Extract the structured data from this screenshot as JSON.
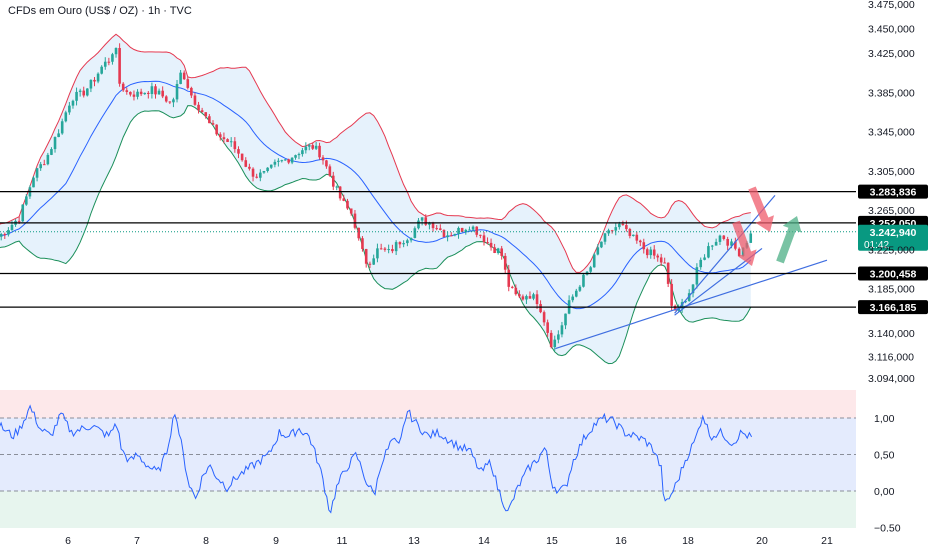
{
  "header": {
    "title": "CFDs em Ouro (US$ / OZ) · 1h · TVC"
  },
  "colors": {
    "up": "#26a69a",
    "down": "#e53950",
    "upper_band": "#e53950",
    "mid_band": "#2962ff",
    "lower_band": "#1b8f5a",
    "band_fill": "#dcecfb",
    "level_line": "#000000",
    "trendline": "#3f6ee0",
    "arrow_down": "#ef5b6b",
    "arrow_up": "#4caf86",
    "current_price": "#089981",
    "osc_line": "#2962ff"
  },
  "chart_data": [
    {
      "type": "candlestick",
      "title": "CFDs em Ouro (US$ / OZ) · 1h · TVC",
      "y_ticks": [
        "3.475,000",
        "3.450,000",
        "3.425,000",
        "3.385,000",
        "3.345,000",
        "3.305,000",
        "3.265,000",
        "3.225,000",
        "3.185,000",
        "3.140,000",
        "3.116,000",
        "3.094,000"
      ],
      "y_tick_values": [
        3475,
        3450,
        3425,
        3385,
        3345,
        3305,
        3265,
        3225,
        3185,
        3140,
        3116,
        3094
      ],
      "ylim": [
        3082,
        3488
      ],
      "x_ticks": [
        "6",
        "7",
        "8",
        "9",
        "11",
        "13",
        "14",
        "15",
        "16",
        "18",
        "20",
        "21"
      ],
      "x_tick_positions": [
        1,
        2,
        3,
        4,
        5,
        6,
        7,
        8,
        9,
        10,
        11,
        12
      ],
      "key_levels": [
        {
          "label": "3.283,836",
          "value": 3283.836
        },
        {
          "label": "3.252,050",
          "value": 3252.05
        },
        {
          "label": "3.200,458",
          "value": 3200.458
        },
        {
          "label": "3.166,185",
          "value": 3166.185
        }
      ],
      "current_price": {
        "label": "3.242,940",
        "value": 3242.94,
        "countdown": "01:42"
      },
      "price_path": [
        [
          0.0,
          3238
        ],
        [
          0.3,
          3258
        ],
        [
          0.5,
          3300
        ],
        [
          0.7,
          3320
        ],
        [
          0.9,
          3352
        ],
        [
          1.05,
          3380
        ],
        [
          1.2,
          3383
        ],
        [
          1.35,
          3395
        ],
        [
          1.5,
          3412
        ],
        [
          1.62,
          3420
        ],
        [
          1.68,
          3437
        ],
        [
          1.74,
          3395
        ],
        [
          1.85,
          3385
        ],
        [
          2.0,
          3383
        ],
        [
          2.2,
          3388
        ],
        [
          2.4,
          3380
        ],
        [
          2.5,
          3372
        ],
        [
          2.6,
          3396
        ],
        [
          2.65,
          3408
        ],
        [
          2.72,
          3395
        ],
        [
          2.8,
          3380
        ],
        [
          2.95,
          3365
        ],
        [
          3.05,
          3352
        ],
        [
          3.2,
          3340
        ],
        [
          3.35,
          3333
        ],
        [
          3.5,
          3320
        ],
        [
          3.62,
          3305
        ],
        [
          3.72,
          3300
        ],
        [
          3.85,
          3302
        ],
        [
          4.0,
          3312
        ],
        [
          4.2,
          3318
        ],
        [
          4.4,
          3327
        ],
        [
          4.55,
          3330
        ],
        [
          4.68,
          3322
        ],
        [
          4.82,
          3300
        ],
        [
          4.95,
          3280
        ],
        [
          5.05,
          3268
        ],
        [
          5.15,
          3260
        ],
        [
          5.25,
          3228
        ],
        [
          5.35,
          3210
        ],
        [
          5.5,
          3225
        ],
        [
          5.65,
          3222
        ],
        [
          5.8,
          3233
        ],
        [
          5.95,
          3240
        ],
        [
          6.1,
          3255
        ],
        [
          6.3,
          3250
        ],
        [
          6.45,
          3240
        ],
        [
          6.6,
          3243
        ],
        [
          6.8,
          3250
        ],
        [
          6.95,
          3240
        ],
        [
          7.1,
          3228
        ],
        [
          7.25,
          3222
        ],
        [
          7.35,
          3190
        ],
        [
          7.45,
          3178
        ],
        [
          7.55,
          3175
        ],
        [
          7.65,
          3180
        ],
        [
          7.8,
          3172
        ],
        [
          7.9,
          3150
        ],
        [
          8.0,
          3127
        ],
        [
          8.1,
          3140
        ],
        [
          8.25,
          3170
        ],
        [
          8.4,
          3190
        ],
        [
          8.55,
          3205
        ],
        [
          8.7,
          3232
        ],
        [
          8.9,
          3247
        ],
        [
          9.0,
          3250
        ],
        [
          9.1,
          3240
        ],
        [
          9.25,
          3232
        ],
        [
          9.35,
          3225
        ],
        [
          9.5,
          3218
        ],
        [
          9.65,
          3210
        ],
        [
          9.75,
          3168
        ],
        [
          9.85,
          3160
        ],
        [
          9.95,
          3175
        ],
        [
          10.05,
          3185
        ],
        [
          10.15,
          3210
        ],
        [
          10.3,
          3230
        ],
        [
          10.45,
          3240
        ],
        [
          10.6,
          3228
        ],
        [
          10.7,
          3222
        ],
        [
          10.8,
          3235
        ],
        [
          10.88,
          3243
        ]
      ]
    },
    {
      "type": "line",
      "y_ticks": [
        "1,00",
        "0,50",
        "0,00",
        "−0.50"
      ],
      "y_tick_values": [
        1.0,
        0.5,
        0.0,
        -0.5
      ],
      "ylim": [
        -0.55,
        1.38
      ],
      "values": [
        [
          0.0,
          0.9
        ],
        [
          0.2,
          0.75
        ],
        [
          0.3,
          0.85
        ],
        [
          0.45,
          1.15
        ],
        [
          0.6,
          0.85
        ],
        [
          0.75,
          0.75
        ],
        [
          0.9,
          1.05
        ],
        [
          1.05,
          0.8
        ],
        [
          1.2,
          0.85
        ],
        [
          1.35,
          0.9
        ],
        [
          1.5,
          0.8
        ],
        [
          1.6,
          0.75
        ],
        [
          1.7,
          0.95
        ],
        [
          1.78,
          0.55
        ],
        [
          1.9,
          0.4
        ],
        [
          2.0,
          0.5
        ],
        [
          2.15,
          0.35
        ],
        [
          2.3,
          0.25
        ],
        [
          2.42,
          0.5
        ],
        [
          2.55,
          1.1
        ],
        [
          2.65,
          0.6
        ],
        [
          2.75,
          0.1
        ],
        [
          2.85,
          -0.1
        ],
        [
          2.95,
          0.2
        ],
        [
          3.05,
          0.35
        ],
        [
          3.15,
          0.2
        ],
        [
          3.3,
          0.05
        ],
        [
          3.45,
          0.2
        ],
        [
          3.6,
          0.3
        ],
        [
          3.75,
          0.4
        ],
        [
          3.9,
          0.5
        ],
        [
          4.05,
          0.8
        ],
        [
          4.2,
          0.75
        ],
        [
          4.35,
          0.85
        ],
        [
          4.5,
          0.75
        ],
        [
          4.6,
          0.5
        ],
        [
          4.7,
          0.2
        ],
        [
          4.82,
          -0.3
        ],
        [
          4.92,
          0.05
        ],
        [
          5.05,
          0.3
        ],
        [
          5.2,
          0.5
        ],
        [
          5.35,
          0.1
        ],
        [
          5.45,
          -0.05
        ],
        [
          5.55,
          0.4
        ],
        [
          5.7,
          0.7
        ],
        [
          5.8,
          0.6
        ],
        [
          5.9,
          1.1
        ],
        [
          6.05,
          0.9
        ],
        [
          6.2,
          0.75
        ],
        [
          6.35,
          0.8
        ],
        [
          6.5,
          0.7
        ],
        [
          6.65,
          0.6
        ],
        [
          6.8,
          0.55
        ],
        [
          6.95,
          0.25
        ],
        [
          7.1,
          0.4
        ],
        [
          7.2,
          0.05
        ],
        [
          7.35,
          -0.3
        ],
        [
          7.5,
          0.05
        ],
        [
          7.65,
          0.3
        ],
        [
          7.8,
          0.45
        ],
        [
          7.9,
          0.6
        ],
        [
          8.0,
          0.1
        ],
        [
          8.1,
          0.0
        ],
        [
          8.2,
          0.05
        ],
        [
          8.3,
          0.4
        ],
        [
          8.45,
          0.7
        ],
        [
          8.6,
          0.9
        ],
        [
          8.75,
          1.0
        ],
        [
          8.9,
          0.95
        ],
        [
          9.05,
          0.8
        ],
        [
          9.2,
          0.75
        ],
        [
          9.35,
          0.7
        ],
        [
          9.5,
          0.55
        ],
        [
          9.6,
          0.3
        ],
        [
          9.65,
          -0.2
        ],
        [
          9.75,
          -0.05
        ],
        [
          9.85,
          0.15
        ],
        [
          9.95,
          0.4
        ],
        [
          10.1,
          0.7
        ],
        [
          10.2,
          1.05
        ],
        [
          10.3,
          0.75
        ],
        [
          10.45,
          0.8
        ],
        [
          10.6,
          0.65
        ],
        [
          10.72,
          0.8
        ],
        [
          10.88,
          0.72
        ]
      ]
    }
  ]
}
